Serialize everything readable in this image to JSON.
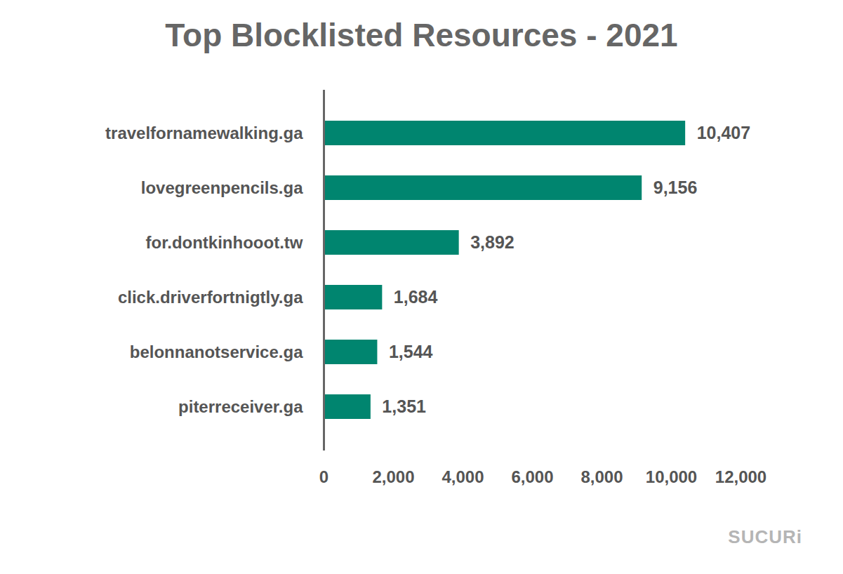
{
  "chart_data": {
    "type": "bar",
    "title": "Top Blocklisted Resources - 2021",
    "orientation": "horizontal",
    "categories": [
      "travelfornamewalking.ga",
      "lovegreenpencils.ga",
      "for.dontkinhooot.tw",
      "click.driverfortnigtly.ga",
      "belonnanotservice.ga",
      "piterreceiver.ga"
    ],
    "values": [
      10407,
      9156,
      3892,
      1684,
      1544,
      1351
    ],
    "value_labels": [
      "10,407",
      "9,156",
      "3,892",
      "1,684",
      "1,544",
      "1,351"
    ],
    "color": "#00856f",
    "xlim": [
      0,
      12000
    ],
    "xticks": [
      0,
      {
        "value": 2000,
        "label": "2,000"
      },
      {
        "value": 4000,
        "label": "4,000"
      },
      {
        "value": 6000,
        "label": "6,000"
      },
      {
        "value": 8000,
        "label": "8,000"
      },
      {
        "value": 10000,
        "label": "10,000"
      },
      {
        "value": 12000,
        "label": "12,000"
      }
    ],
    "data_labels": true,
    "grid": false,
    "annotations": [
      "SUCURi"
    ]
  }
}
